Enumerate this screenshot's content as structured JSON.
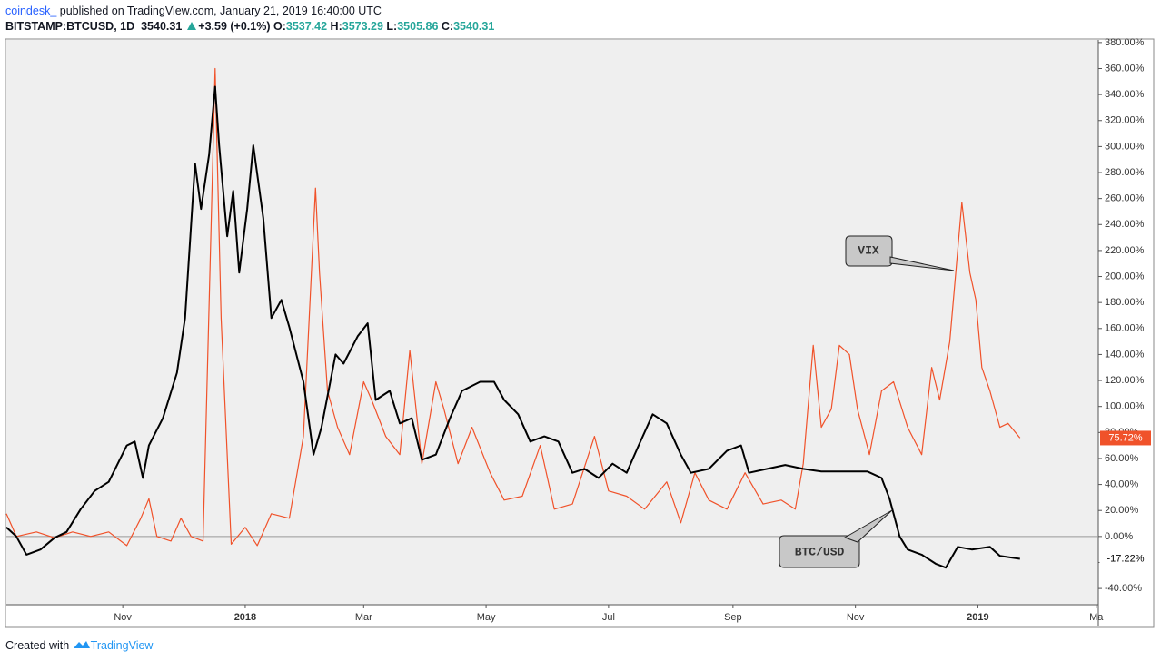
{
  "header": {
    "author": "coindesk_",
    "published": "published on TradingView.com, January 21, 2019 16:40:00 UTC",
    "symbol": "BITSTAMP:BTCUSD, 1D",
    "price": "3540.31",
    "change": "+3.59 (+0.1%)",
    "o_label": "O:",
    "o": "3537.42",
    "h_label": "H:",
    "h": "3573.29",
    "l_label": "L:",
    "l": "3505.86",
    "c_label": "C:",
    "c": "3540.31"
  },
  "footer": {
    "created": "Created with",
    "brand": "TradingView"
  },
  "chart_data": {
    "type": "line",
    "xlim": [
      -58,
      486
    ],
    "xticks": [
      {
        "value": 0,
        "label": "Nov"
      },
      {
        "value": 61,
        "label": "2018"
      },
      {
        "value": 120,
        "label": "Mar"
      },
      {
        "value": 181,
        "label": "May"
      },
      {
        "value": 242,
        "label": "Jul"
      },
      {
        "value": 304,
        "label": "Sep"
      },
      {
        "value": 365,
        "label": "Nov"
      },
      {
        "value": 426,
        "label": "2019"
      },
      {
        "value": 485,
        "label": "Ma"
      }
    ],
    "ylim": [
      -52.5,
      382
    ],
    "yticks": [
      {
        "value": -40,
        "label": "-40.00%"
      },
      {
        "value": -20,
        "label": "-20.00%"
      },
      {
        "value": 0,
        "label": "0.00%"
      },
      {
        "value": 20,
        "label": "20.00%"
      },
      {
        "value": 40,
        "label": "40.00%"
      },
      {
        "value": 60,
        "label": "60.00%"
      },
      {
        "value": 80,
        "label": "80.00%"
      },
      {
        "value": 100,
        "label": "100.00%"
      },
      {
        "value": 120,
        "label": "120.00%"
      },
      {
        "value": 140,
        "label": "140.00%"
      },
      {
        "value": 160,
        "label": "160.00%"
      },
      {
        "value": 180,
        "label": "180.00%"
      },
      {
        "value": 200,
        "label": "200.00%"
      },
      {
        "value": 220,
        "label": "220.00%"
      },
      {
        "value": 240,
        "label": "240.00%"
      },
      {
        "value": 260,
        "label": "260.00%"
      },
      {
        "value": 280,
        "label": "280.00%"
      },
      {
        "value": 300,
        "label": "300.00%"
      },
      {
        "value": 320,
        "label": "320.00%"
      },
      {
        "value": 340,
        "label": "340.00%"
      },
      {
        "value": 360,
        "label": "360.00%"
      },
      {
        "value": 380,
        "label": "380.00%"
      }
    ],
    "zero_line": true,
    "series": [
      {
        "name": "VIX",
        "color": "#f0522a",
        "x": [
          -58,
          -53,
          -43,
          -34,
          -25,
          -16,
          -7,
          2,
          9,
          13,
          17,
          24,
          29,
          34,
          40,
          46,
          49,
          54,
          61,
          67,
          74,
          83,
          90,
          96,
          98,
          102,
          107,
          113,
          120,
          124,
          131,
          138,
          143,
          149,
          156,
          160,
          167,
          174,
          183,
          190,
          199,
          208,
          215,
          224,
          235,
          242,
          251,
          260,
          271,
          278,
          285,
          292,
          301,
          310,
          319,
          328,
          335,
          339,
          344,
          348,
          353,
          357,
          362,
          366,
          372,
          378,
          384,
          391,
          398,
          403,
          407,
          412,
          415,
          418,
          422,
          425,
          428,
          432,
          437,
          441,
          447
        ],
        "values": [
          17.5,
          0,
          3.5,
          -1,
          3.5,
          0,
          3.5,
          -7,
          14,
          29,
          0,
          -3.5,
          14,
          0,
          -3.5,
          360,
          168,
          -6,
          7,
          -7,
          17.5,
          14,
          77,
          268,
          203,
          112,
          84,
          63,
          119,
          105,
          77,
          63,
          143,
          56,
          119,
          98,
          56,
          84,
          49,
          28,
          31,
          70,
          21,
          25,
          77,
          35,
          31,
          21,
          42,
          10.5,
          49,
          28,
          21,
          49,
          25,
          28,
          21,
          56,
          147,
          84,
          98,
          147,
          140,
          98,
          63,
          112,
          119,
          84,
          63,
          130,
          105,
          150,
          203,
          257,
          203,
          182,
          130,
          112,
          84,
          87,
          75.72
        ],
        "last_label": "75.72%"
      },
      {
        "name": "BTC/USD",
        "color": "#000000",
        "x": [
          -58,
          -53,
          -48,
          -41,
          -34,
          -28,
          -21,
          -14,
          -7,
          2,
          6,
          10,
          13,
          20,
          27,
          31,
          36,
          39,
          43,
          46,
          48,
          52,
          55,
          58,
          62,
          65,
          70,
          74,
          79,
          83,
          90,
          95,
          99,
          106,
          110,
          117,
          122,
          126,
          133,
          138,
          144,
          149,
          156,
          163,
          169,
          178,
          185,
          190,
          197,
          203,
          210,
          217,
          224,
          230,
          237,
          244,
          251,
          257,
          264,
          271,
          278,
          283,
          292,
          301,
          308,
          312,
          321,
          330,
          339,
          348,
          360,
          371,
          378,
          382,
          387,
          391,
          398,
          405,
          410,
          416,
          423,
          432,
          437,
          447
        ],
        "values": [
          7,
          0,
          -14,
          -10,
          -1,
          3.5,
          21,
          35,
          42,
          70,
          73,
          45,
          70,
          91,
          126,
          168,
          287,
          252,
          294,
          346,
          301,
          231,
          266,
          203,
          252,
          301,
          245,
          168,
          182,
          161,
          119,
          63,
          84,
          140,
          133,
          154,
          164,
          105,
          112,
          87,
          91,
          59,
          63,
          91,
          112,
          119,
          119,
          105,
          94,
          73,
          77,
          73,
          49,
          52,
          45,
          56,
          49,
          70,
          94,
          87,
          63,
          49,
          52,
          66,
          70,
          49,
          52,
          55,
          52,
          50,
          50,
          50,
          45,
          29,
          0,
          -10,
          -14,
          -21,
          -24,
          -8,
          -10,
          -8,
          -15,
          -17.22
        ],
        "last_label": "-17.22%"
      }
    ]
  }
}
